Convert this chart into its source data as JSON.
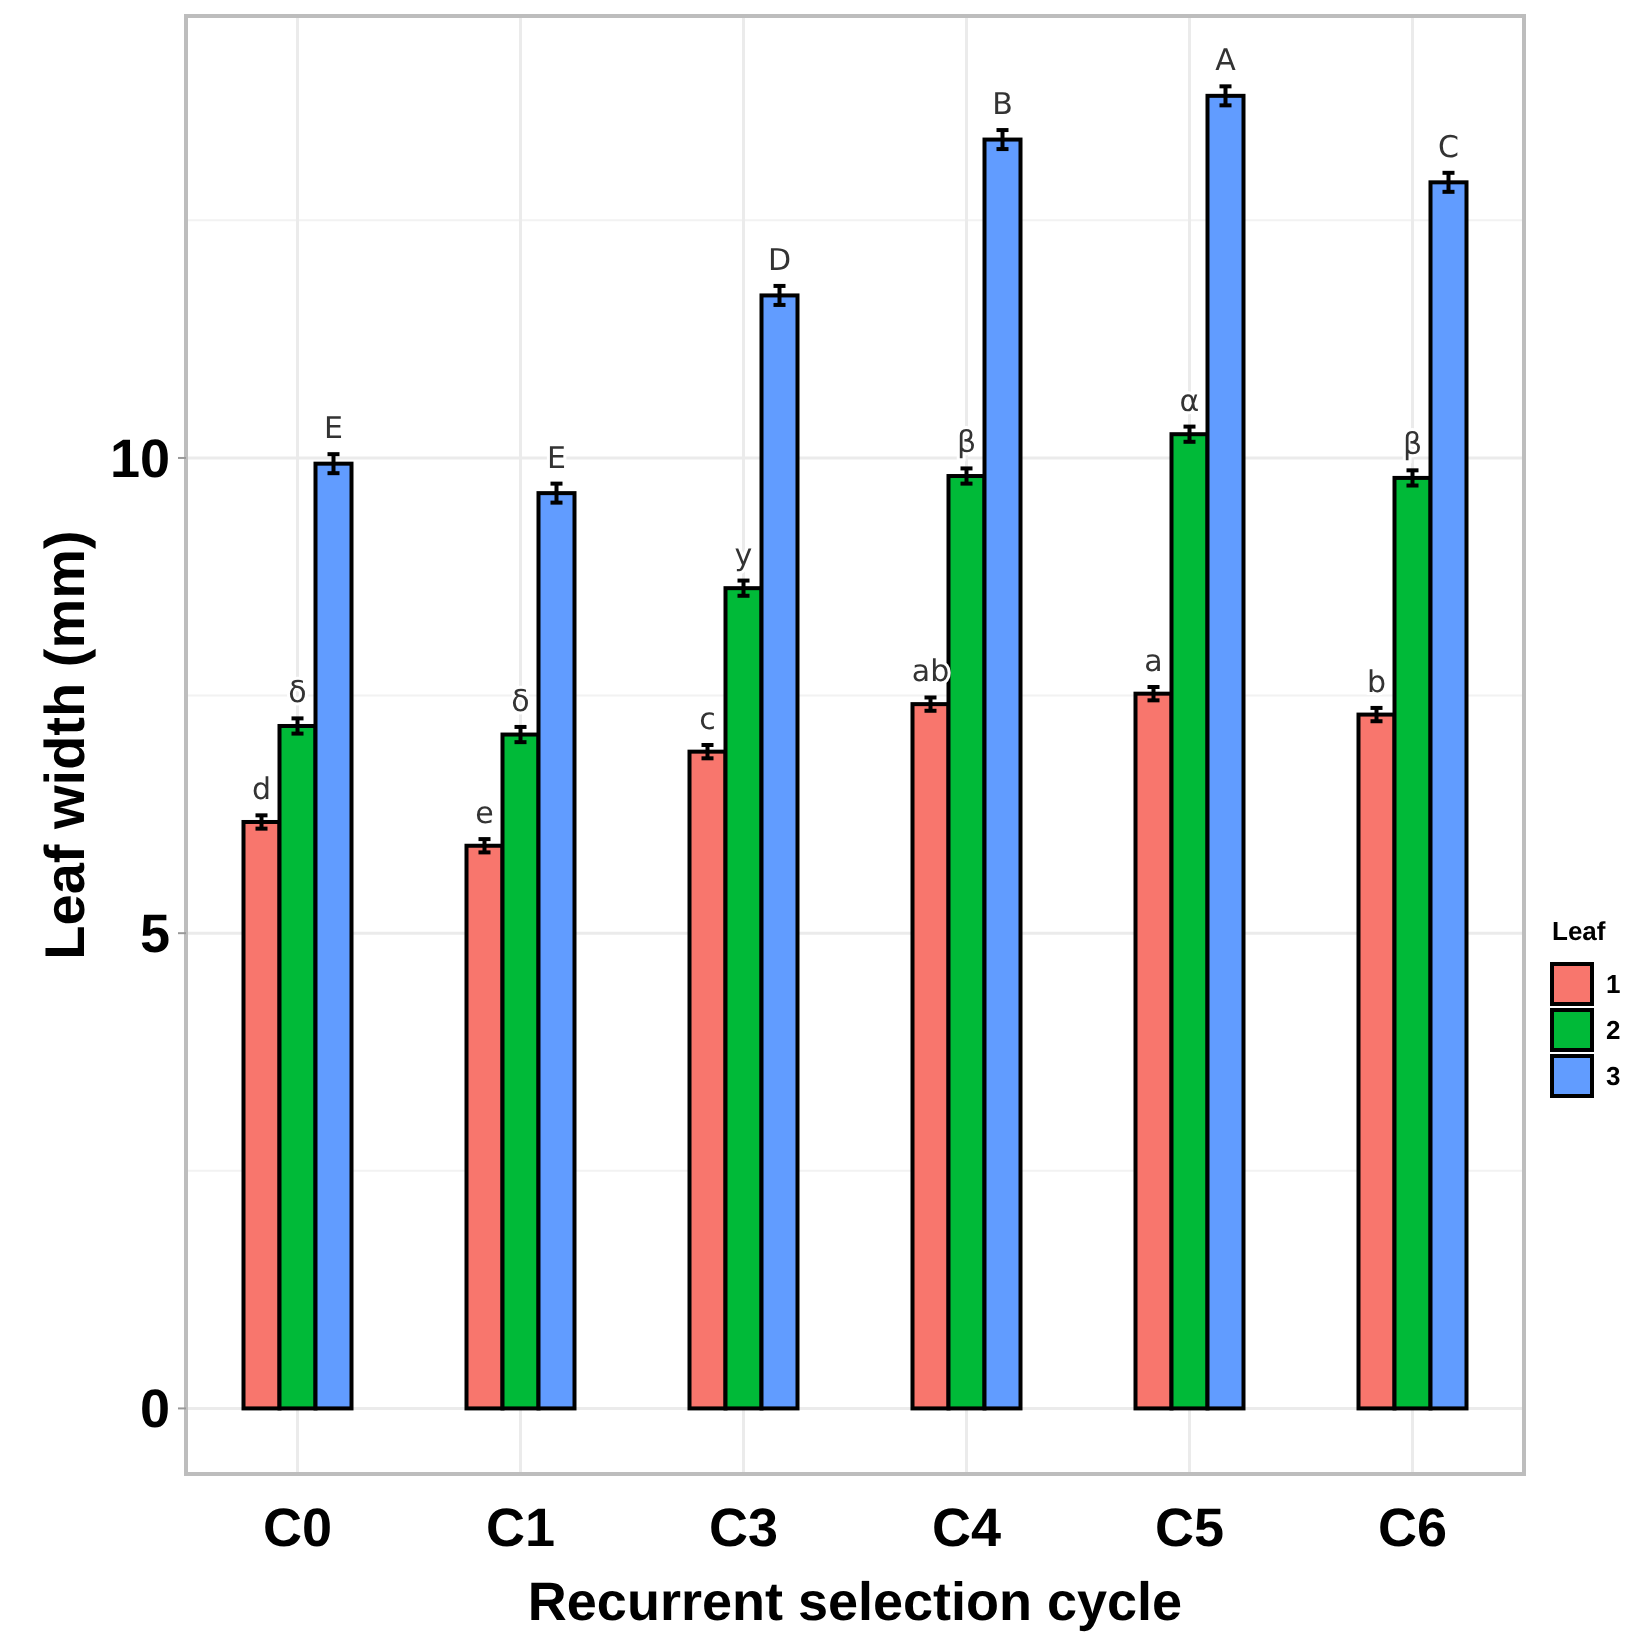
{
  "chart_data": {
    "type": "bar",
    "xlabel": "Recurrent selection cycle",
    "ylabel": "Leaf width (mm)",
    "legend_title": "Leaf",
    "categories": [
      "C0",
      "C1",
      "C3",
      "C4",
      "C5",
      "C6"
    ],
    "series": [
      {
        "name": "1",
        "color": "#f8766d",
        "values": [
          6.17,
          5.92,
          6.91,
          7.41,
          7.52,
          7.3
        ],
        "errors": [
          0.07,
          0.07,
          0.07,
          0.07,
          0.07,
          0.07
        ],
        "value_labels": [
          "d",
          "e",
          "c",
          "ab",
          "a",
          "b"
        ]
      },
      {
        "name": "2",
        "color": "#00ba38",
        "values": [
          7.18,
          7.09,
          8.63,
          9.81,
          10.25,
          9.79
        ],
        "errors": [
          0.08,
          0.08,
          0.08,
          0.08,
          0.08,
          0.08
        ],
        "value_labels": [
          "δ",
          "δ",
          "y",
          "β",
          "α",
          "β"
        ]
      },
      {
        "name": "3",
        "color": "#619cff",
        "values": [
          9.94,
          9.63,
          11.71,
          13.35,
          13.81,
          12.9
        ],
        "errors": [
          0.1,
          0.1,
          0.1,
          0.1,
          0.1,
          0.1
        ],
        "value_labels": [
          "E",
          "E",
          "D",
          "B",
          "A",
          "C"
        ]
      }
    ],
    "ylim": [
      -0.69,
      14.65
    ],
    "yticks": [
      0,
      5,
      10
    ],
    "grid": true,
    "legend": "right"
  }
}
